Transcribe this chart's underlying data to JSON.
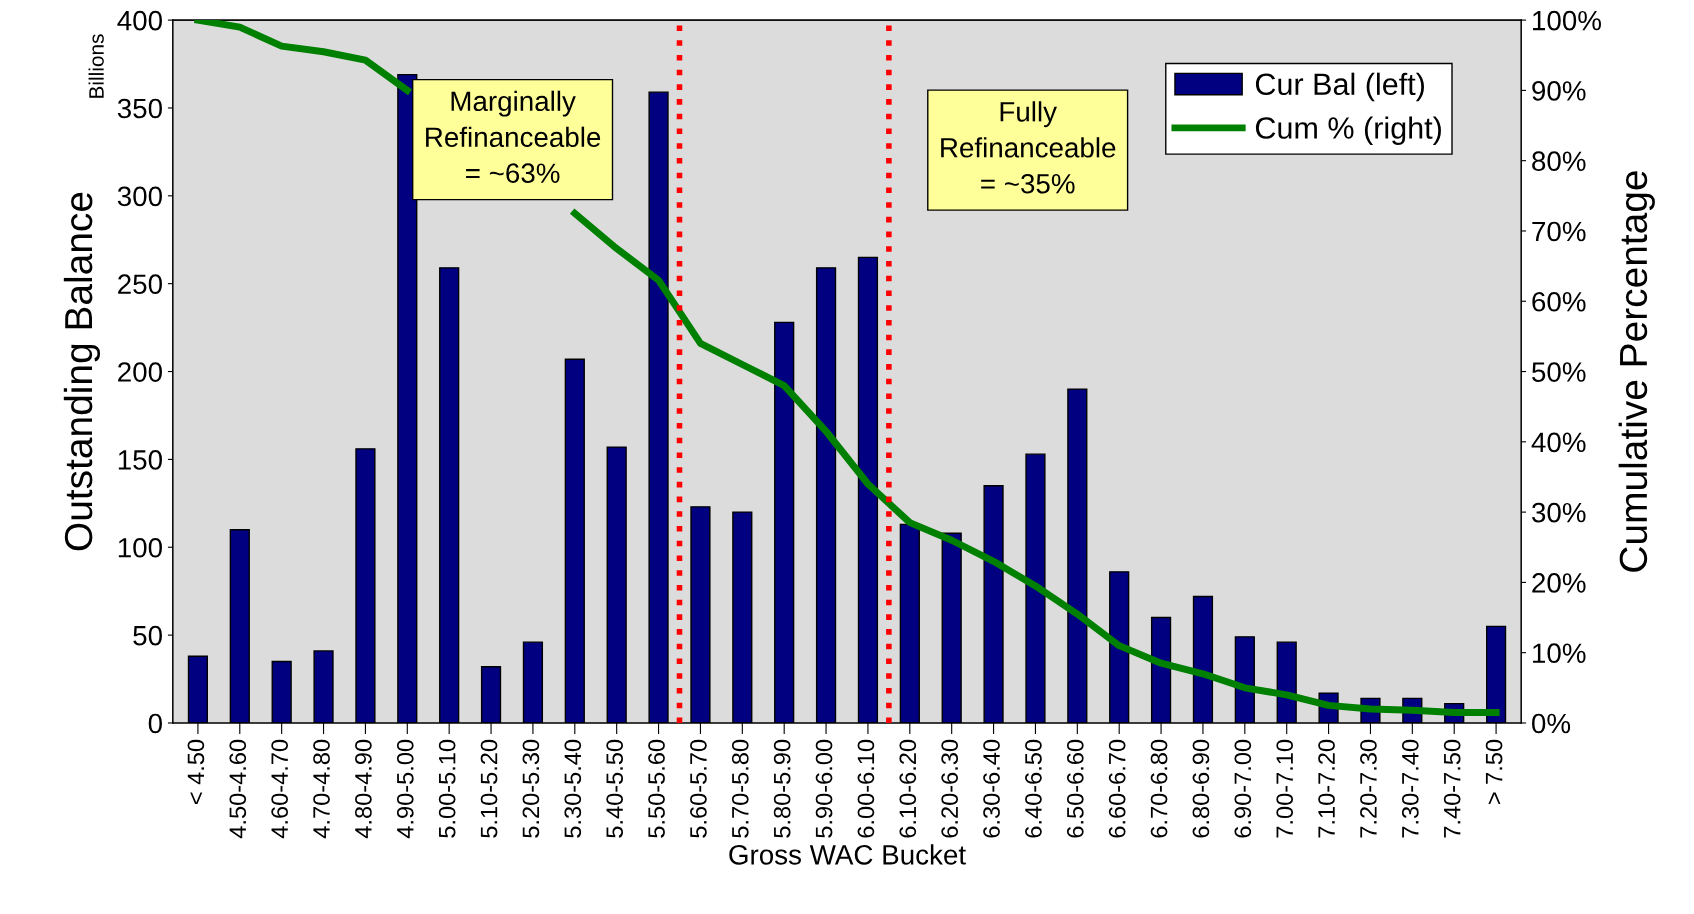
{
  "chart_data": {
    "type": "bar",
    "xlabel": "Gross WAC Bucket",
    "ylabel": "Outstanding Balance",
    "y2label": "Cumulative Percentage",
    "categories": [
      "< 4.50",
      "4.50-4.60",
      "4.60-4.70",
      "4.70-4.80",
      "4.80-4.90",
      "4.90-5.00",
      "5.00-5.10",
      "5.10-5.20",
      "5.20-5.30",
      "5.30-5.40",
      "5.40-5.50",
      "5.50-5.60",
      "5.60-5.70",
      "5.70-5.80",
      "5.80-5.90",
      "5.90-6.00",
      "6.00-6.10",
      "6.10-6.20",
      "6.20-6.30",
      "6.30-6.40",
      "6.40-6.50",
      "6.50-6.60",
      "6.60-6.70",
      "6.70-6.80",
      "6.80-6.90",
      "6.90-7.00",
      "7.00-7.10",
      "7.10-7.20",
      "7.20-7.30",
      "7.30-7.40",
      "7.40-7.50",
      "> 7.50"
    ],
    "series": [
      {
        "name": "Cur Bal (left)",
        "color": "#000080",
        "values": [
          38,
          110,
          35,
          41,
          156,
          369,
          259,
          32,
          46,
          207,
          157,
          359,
          123,
          120,
          228,
          259,
          265,
          113,
          108,
          135,
          153,
          190,
          86,
          60,
          72,
          49,
          46,
          17,
          14,
          14,
          11,
          55
        ]
      },
      {
        "name": "Cum % (right)",
        "type": "line",
        "axis": "y2",
        "color": "#008000",
        "values": [
          100,
          99,
          96.3,
          95.5,
          94.3,
          90,
          null,
          null,
          null,
          72.5,
          67.5,
          63,
          54,
          51,
          48,
          41.5,
          34,
          28.5,
          26,
          23,
          19.5,
          15.5,
          11,
          8.5,
          7,
          5,
          4,
          2.5,
          2,
          1.8,
          1.5,
          1.5
        ]
      }
    ],
    "ylim": [
      0,
      400
    ],
    "yticks": [
      0,
      50,
      100,
      150,
      200,
      250,
      300,
      350,
      400
    ],
    "y2lim": [
      0,
      100
    ],
    "y2ticks": [
      {
        "value": 0,
        "label": "0%"
      },
      {
        "value": 10,
        "label": "10%"
      },
      {
        "value": 20,
        "label": "20%"
      },
      {
        "value": 30,
        "label": "30%"
      },
      {
        "value": 40,
        "label": "40%"
      },
      {
        "value": 50,
        "label": "50%"
      },
      {
        "value": 60,
        "label": "60%"
      },
      {
        "value": 70,
        "label": "70%"
      },
      {
        "value": 80,
        "label": "80%"
      },
      {
        "value": 90,
        "label": "90%"
      },
      {
        "value": 100,
        "label": "100%"
      }
    ],
    "annotations": [
      "Billions",
      "Marginally\nRefinanceable\n= ~63%",
      "Fully\nRefinanceable\n= ~35%"
    ],
    "legend": "top right",
    "grid": false
  }
}
